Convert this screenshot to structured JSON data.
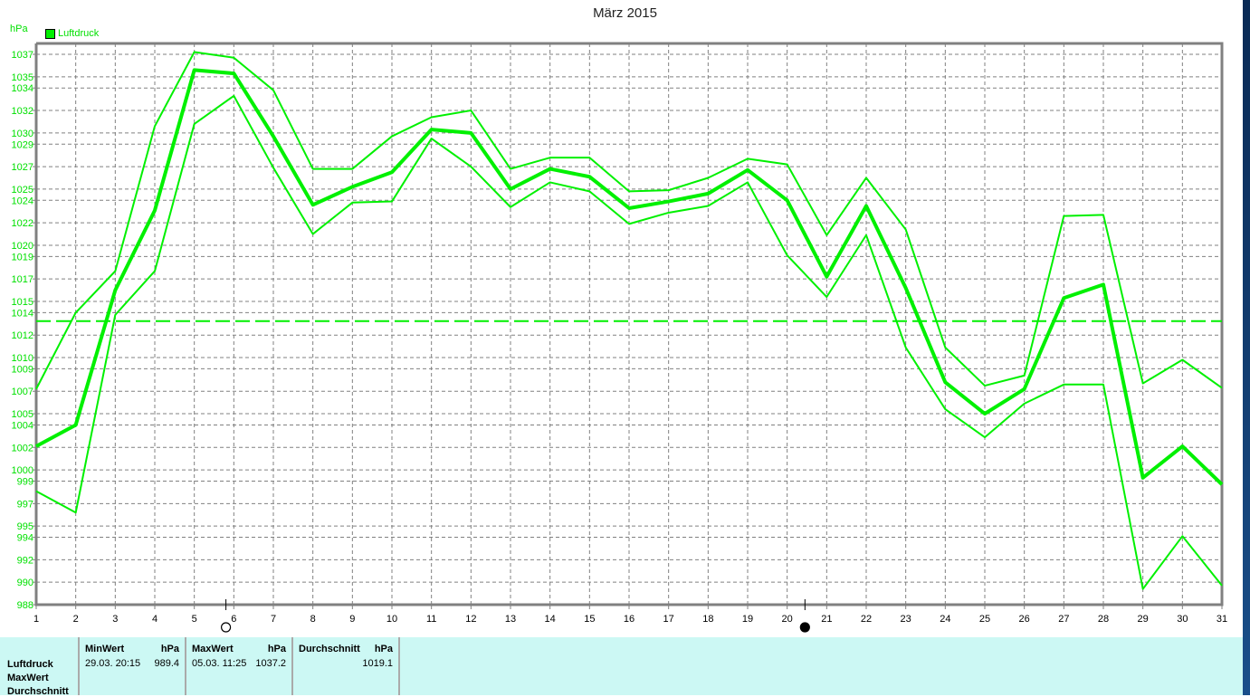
{
  "chart_data": {
    "type": "line",
    "title": "März 2015",
    "ylabel": "hPa",
    "legend": [
      "Luftdruck"
    ],
    "legend_placement": "top-left",
    "grid": true,
    "xlim": [
      1,
      31
    ],
    "ylim": [
      988,
      1037
    ],
    "x": [
      1,
      2,
      3,
      4,
      5,
      6,
      7,
      8,
      9,
      10,
      11,
      12,
      13,
      14,
      15,
      16,
      17,
      18,
      19,
      20,
      21,
      22,
      23,
      24,
      25,
      26,
      27,
      28,
      29,
      30,
      31
    ],
    "y_ticks": [
      1037,
      1035,
      1034,
      1032,
      1030,
      1029,
      1027,
      1025,
      1024,
      1022,
      1020,
      1019,
      1017,
      1015,
      1014,
      1012,
      1010,
      1009,
      1007,
      1005,
      1004,
      1002,
      1000,
      999,
      997,
      995,
      994,
      992,
      990,
      988
    ],
    "series": [
      {
        "values": [
          1007.2,
          1014.0,
          1017.7,
          1030.6,
          1037.2,
          1036.7,
          1033.8,
          1026.8,
          1026.8,
          1029.7,
          1031.4,
          1032.0,
          1026.8,
          1027.8,
          1027.8,
          1024.8,
          1024.9,
          1026.0,
          1027.7,
          1027.2,
          1020.9,
          1026.0,
          1021.4,
          1010.9,
          1007.5,
          1008.4,
          1022.6,
          1022.7,
          1007.7,
          1009.8,
          1007.3
        ],
        "width": 2
      },
      {
        "values": [
          1002.1,
          1004.0,
          1016.0,
          1023.1,
          1035.6,
          1035.3,
          1029.7,
          1023.6,
          1025.2,
          1026.5,
          1030.3,
          1030.0,
          1025.0,
          1026.8,
          1026.1,
          1023.3,
          1023.9,
          1024.6,
          1026.7,
          1024.0,
          1017.2,
          1023.5,
          1016.2,
          1007.8,
          1005.0,
          1007.2,
          1015.3,
          1016.5,
          999.3,
          1002.1,
          998.7
        ],
        "width": 4
      },
      {
        "values": [
          998.1,
          996.2,
          1013.8,
          1017.7,
          1030.8,
          1033.3,
          1026.9,
          1021.0,
          1023.8,
          1023.9,
          1029.5,
          1027.0,
          1023.4,
          1025.6,
          1024.8,
          1021.9,
          1022.9,
          1023.5,
          1025.6,
          1019.1,
          1015.4,
          1020.9,
          1010.9,
          1005.4,
          1002.9,
          1005.9,
          1007.6,
          1007.6,
          989.4,
          994.1,
          989.7
        ],
        "width": 2
      }
    ],
    "reference_line": 1013.25,
    "moon_phases": [
      {
        "day": 5.8,
        "phase": "full-moon"
      },
      {
        "day": 20.45,
        "phase": "new-moon"
      }
    ],
    "colors": {
      "series": "#00f000",
      "grid": "#808080",
      "axis": "#808080",
      "table_bg": "#ccf8f4"
    }
  },
  "table": {
    "row_labels": [
      "Luftdruck",
      "MaxWert",
      "Durchschnitt"
    ],
    "min": {
      "header": "MinWert",
      "unit": "hPa",
      "time": "29.03.  20:15",
      "value": "989.4"
    },
    "max": {
      "header": "MaxWert",
      "unit": "hPa",
      "time": "05.03.  11:25",
      "value": "1037.2"
    },
    "avg": {
      "header": "Durchschnitt",
      "unit": "hPa",
      "value": "1019.1"
    }
  }
}
